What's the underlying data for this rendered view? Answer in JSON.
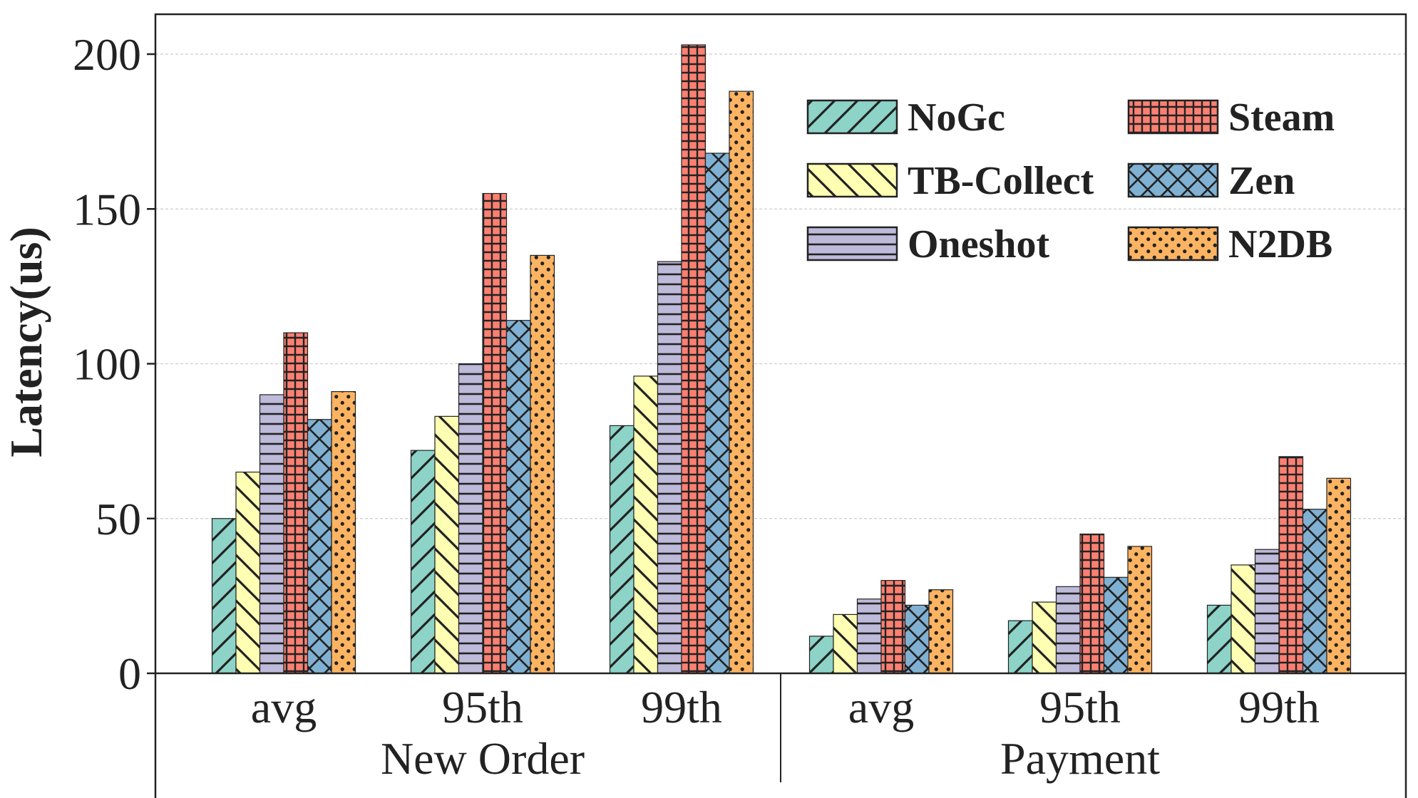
{
  "chart_data": {
    "type": "bar",
    "ylabel": "Latency(us)",
    "xlabel": "",
    "ylim": [
      0,
      210
    ],
    "yticks": [
      0,
      50,
      100,
      150,
      200
    ],
    "grid": "horizontal dashed",
    "legend_position": "top-right",
    "groups": [
      {
        "name": "New Order",
        "categories": [
          "avg",
          "95th",
          "99th"
        ]
      },
      {
        "name": "Payment",
        "categories": [
          "avg",
          "95th",
          "99th"
        ]
      }
    ],
    "categories": [
      "avg",
      "95th",
      "99th",
      "avg",
      "95th",
      "99th"
    ],
    "series": [
      {
        "name": "NoGc",
        "color": "#8dd3c7",
        "pattern": "diagonal",
        "values": [
          50,
          72,
          80,
          12,
          17,
          22
        ]
      },
      {
        "name": "TB-Collect",
        "color": "#ffffb3",
        "pattern": "backdiagonal",
        "values": [
          65,
          83,
          96,
          19,
          23,
          35
        ]
      },
      {
        "name": "Oneshot",
        "color": "#bebada",
        "pattern": "horizontal",
        "values": [
          90,
          100,
          133,
          24,
          28,
          40
        ]
      },
      {
        "name": "Steam",
        "color": "#fb8072",
        "pattern": "grid",
        "values": [
          110,
          155,
          203,
          30,
          45,
          70
        ]
      },
      {
        "name": "Zen",
        "color": "#80b1d3",
        "pattern": "crosshatch",
        "values": [
          82,
          114,
          168,
          22,
          31,
          53
        ]
      },
      {
        "name": "N2DB",
        "color": "#fdb462",
        "pattern": "dots",
        "values": [
          91,
          135,
          188,
          27,
          41,
          63
        ]
      }
    ]
  }
}
